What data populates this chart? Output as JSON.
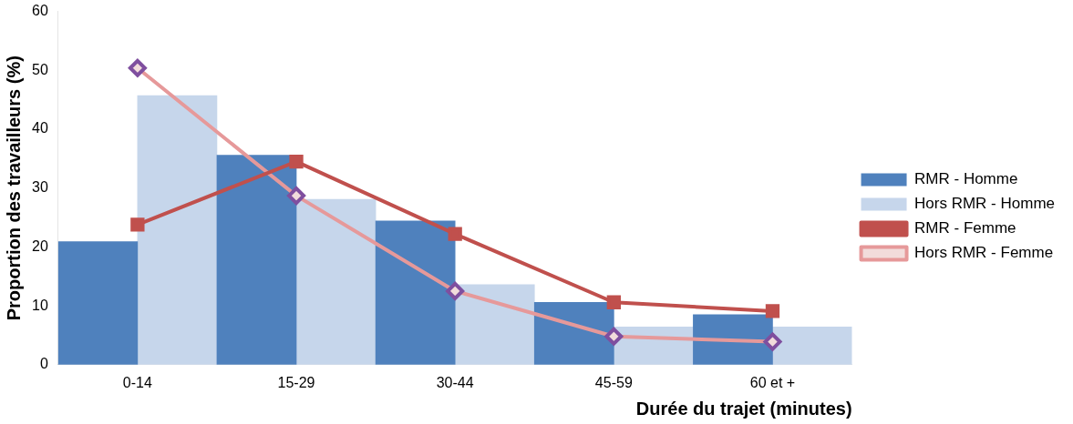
{
  "chart_data": {
    "type": "bar",
    "xlabel": "Durée du trajet (minutes)",
    "ylabel": "Proportion des travailleurs (%)",
    "categories": [
      "0-14",
      "15-29",
      "30-44",
      "45-59",
      "60 et +"
    ],
    "series": [
      {
        "name": "RMR - Homme",
        "color": "#4f81bd",
        "values": [
          20.9,
          35.6,
          24.4,
          10.6,
          8.5
        ]
      },
      {
        "name": "Hors RMR - Homme",
        "color": "#c6d6eb",
        "values": [
          45.7,
          28.1,
          13.6,
          6.4,
          6.4
        ]
      },
      {
        "name": "RMR - Femme",
        "type": "line",
        "color": "#c0504d",
        "marker": "square",
        "values": [
          23.8,
          34.5,
          22.2,
          10.6,
          9.1
        ]
      },
      {
        "name": "Hors RMR - Femme",
        "type": "line",
        "color": "#e6999a",
        "marker": "diamond",
        "values": [
          50.4,
          28.7,
          12.5,
          4.8,
          3.9
        ]
      }
    ],
    "ylim": [
      0,
      60
    ],
    "yticks": [
      0,
      10,
      20,
      30,
      40,
      50,
      60
    ],
    "grid": false,
    "legend": "right"
  }
}
